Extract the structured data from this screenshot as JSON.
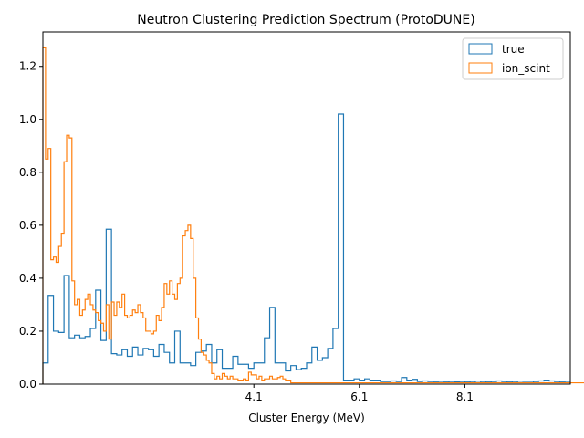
{
  "chart_data": {
    "type": "step-histogram",
    "title": "Neutron Clustering Prediction Spectrum (ProtoDUNE)",
    "xlabel": "Cluster Energy (MeV)",
    "ylabel": "",
    "xlim": [
      0.1,
      10.1
    ],
    "ylim": [
      0,
      1.33
    ],
    "grid": false,
    "legend_position": "top-right",
    "xticks": [
      {
        "value": 4.1,
        "label": "4.1"
      },
      {
        "value": 6.1,
        "label": "6.1"
      },
      {
        "value": 8.1,
        "label": "8.1"
      }
    ],
    "yticks": [
      {
        "value": 0.0,
        "label": "0.0"
      },
      {
        "value": 0.2,
        "label": "0.2"
      },
      {
        "value": 0.4,
        "label": "0.4"
      },
      {
        "value": 0.6,
        "label": "0.6"
      },
      {
        "value": 0.8,
        "label": "0.8"
      },
      {
        "value": 1.0,
        "label": "1.0"
      },
      {
        "value": 1.2,
        "label": "1.2"
      }
    ],
    "series": [
      {
        "name": "true",
        "color": "#1f77b4",
        "bin_width": 0.1,
        "start": 0.1,
        "values": [
          0.08,
          0.335,
          0.2,
          0.195,
          0.41,
          0.175,
          0.185,
          0.175,
          0.18,
          0.21,
          0.355,
          0.165,
          0.585,
          0.115,
          0.11,
          0.13,
          0.105,
          0.14,
          0.11,
          0.135,
          0.13,
          0.105,
          0.15,
          0.12,
          0.08,
          0.2,
          0.08,
          0.08,
          0.07,
          0.12,
          0.125,
          0.15,
          0.08,
          0.13,
          0.06,
          0.06,
          0.105,
          0.075,
          0.075,
          0.06,
          0.08,
          0.08,
          0.175,
          0.29,
          0.08,
          0.08,
          0.05,
          0.07,
          0.055,
          0.06,
          0.08,
          0.14,
          0.09,
          0.1,
          0.135,
          0.21,
          1.02,
          0.015,
          0.015,
          0.02,
          0.015,
          0.02,
          0.015,
          0.015,
          0.01,
          0.01,
          0.012,
          0.01,
          0.025,
          0.015,
          0.018,
          0.01,
          0.012,
          0.01,
          0.008,
          0.007,
          0.008,
          0.01,
          0.009,
          0.01,
          0.008,
          0.01,
          0.006,
          0.01,
          0.008,
          0.01,
          0.012,
          0.01,
          0.008,
          0.01,
          0.006,
          0.007,
          0.007,
          0.01,
          0.012,
          0.015,
          0.012,
          0.01,
          0.008,
          0.007
        ]
      },
      {
        "name": "ion_scint",
        "color": "#ff7f0e",
        "bin_width": 0.05,
        "start": 0.1,
        "values": [
          1.27,
          0.85,
          0.89,
          0.47,
          0.48,
          0.46,
          0.52,
          0.57,
          0.84,
          0.94,
          0.93,
          0.39,
          0.3,
          0.32,
          0.26,
          0.28,
          0.32,
          0.34,
          0.3,
          0.28,
          0.27,
          0.24,
          0.23,
          0.2,
          0.3,
          0.17,
          0.31,
          0.26,
          0.31,
          0.29,
          0.34,
          0.26,
          0.25,
          0.26,
          0.28,
          0.27,
          0.3,
          0.27,
          0.25,
          0.2,
          0.2,
          0.19,
          0.2,
          0.26,
          0.24,
          0.29,
          0.38,
          0.34,
          0.39,
          0.34,
          0.32,
          0.38,
          0.4,
          0.56,
          0.58,
          0.6,
          0.55,
          0.4,
          0.25,
          0.17,
          0.12,
          0.11,
          0.09,
          0.08,
          0.04,
          0.02,
          0.03,
          0.02,
          0.04,
          0.03,
          0.02,
          0.03,
          0.02,
          0.02,
          0.015,
          0.015,
          0.02,
          0.015,
          0.045,
          0.035,
          0.035,
          0.02,
          0.03,
          0.015,
          0.02,
          0.02,
          0.03,
          0.02,
          0.02,
          0.025,
          0.03,
          0.02,
          0.015,
          0.015,
          0.005,
          0.005,
          0.005,
          0.005,
          0.005,
          0.005,
          0.005,
          0.005,
          0.005,
          0.005,
          0.005,
          0.005,
          0.005,
          0.005,
          0.005,
          0.005,
          0.005,
          0.005,
          0.005,
          0.005,
          0.005,
          0.005,
          0.005,
          0.005,
          0.005,
          0.005,
          0.005,
          0.005,
          0.005,
          0.005,
          0.005,
          0.005,
          0.005,
          0.005,
          0.005,
          0.005,
          0.005,
          0.005,
          0.005,
          0.005,
          0.005,
          0.005,
          0.005,
          0.005,
          0.005,
          0.005,
          0.005,
          0.005,
          0.005,
          0.005,
          0.005,
          0.005,
          0.005,
          0.005,
          0.005,
          0.005,
          0.005,
          0.005,
          0.005,
          0.005,
          0.005,
          0.005,
          0.005,
          0.005,
          0.005,
          0.005,
          0.005,
          0.005,
          0.005,
          0.005,
          0.005,
          0.005,
          0.005,
          0.005,
          0.005,
          0.005,
          0.005,
          0.005,
          0.005,
          0.005,
          0.005,
          0.005,
          0.005,
          0.005,
          0.005,
          0.005,
          0.005,
          0.005,
          0.005,
          0.005,
          0.005,
          0.005,
          0.005,
          0.005,
          0.005,
          0.005,
          0.005,
          0.005,
          0.005,
          0.005,
          0.005,
          0.005,
          0.005,
          0.005,
          0.005,
          0.005,
          0.005,
          0.005,
          0.005,
          0.005,
          0.005,
          0.005,
          0.005,
          0.005,
          0.005,
          0.005,
          0.005,
          0.005,
          0.005,
          0.005
        ]
      }
    ]
  }
}
